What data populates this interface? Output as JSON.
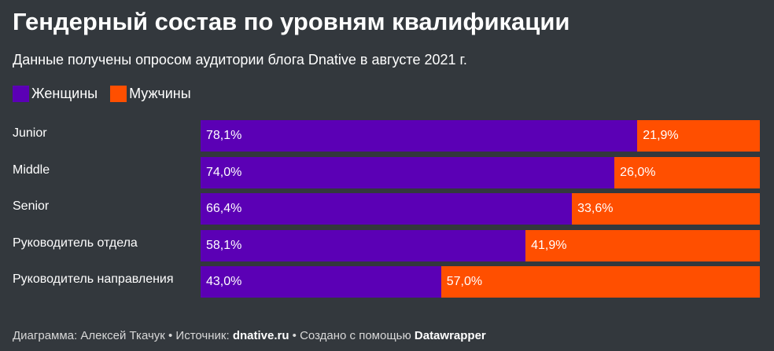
{
  "title": "Гендерный состав по уровням квалификации",
  "subtitle": "Данные получены опросом аудитории блога Dnative в августе 2021 г.",
  "colors": {
    "women": "#5b00b5",
    "men": "#ff4f00",
    "background": "#33383d"
  },
  "footer": {
    "prefix": "Диаграмма: Алексей Ткачук • Источник: ",
    "source": "dnative.ru",
    "middle": " • Создано с помощью ",
    "tool": "Datawrapper"
  },
  "chart_data": {
    "type": "bar",
    "orientation": "horizontal",
    "stacked": true,
    "normalized_to": 100,
    "categories": [
      "Junior",
      "Middle",
      "Senior",
      "Руководитель отдела",
      "Руководитель направления"
    ],
    "series": [
      {
        "name": "Женщины",
        "values": [
          78.1,
          74.0,
          66.4,
          58.1,
          43.0
        ],
        "labels": [
          "78,1%",
          "74,0%",
          "66,4%",
          "58,1%",
          "43,0%"
        ],
        "color": "#5b00b5"
      },
      {
        "name": "Мужчины",
        "values": [
          21.9,
          26.0,
          33.6,
          41.9,
          57.0
        ],
        "labels": [
          "21,9%",
          "26,0%",
          "33,6%",
          "41,9%",
          "57,0%"
        ],
        "color": "#ff4f00"
      }
    ],
    "legend_position": "top-left",
    "grid": false
  }
}
